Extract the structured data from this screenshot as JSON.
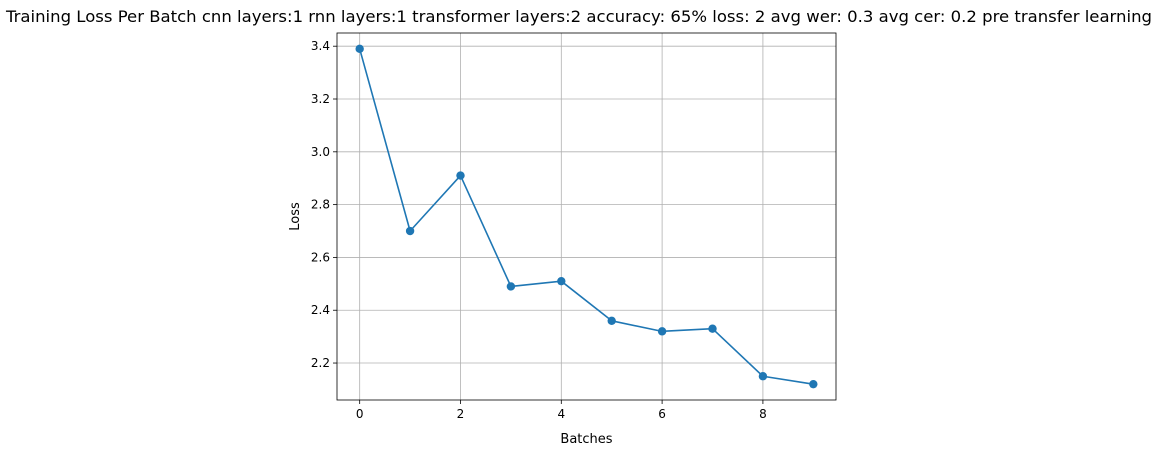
{
  "chart_data": {
    "type": "line",
    "title": "Training Loss Per Batch cnn layers:1 rnn layers:1 transformer layers:2 accuracy: 65% loss: 2 avg wer: 0.3 avg cer: 0.2 pre transfer learning",
    "xlabel": "Batches",
    "ylabel": "Loss",
    "x": [
      0,
      1,
      2,
      3,
      4,
      5,
      6,
      7,
      8,
      9
    ],
    "series": [
      {
        "values": [
          3.39,
          2.7,
          2.91,
          2.49,
          2.51,
          2.36,
          2.32,
          2.33,
          2.15,
          2.12
        ],
        "color": "#1f77b4",
        "marker": "circle"
      }
    ],
    "xlim": [
      -0.45,
      9.45
    ],
    "ylim": [
      2.06,
      3.45
    ],
    "xticks": [
      0,
      2,
      4,
      6,
      8
    ],
    "xtick_labels": [
      "0",
      "2",
      "4",
      "6",
      "8"
    ],
    "yticks": [
      2.2,
      2.4,
      2.6,
      2.8,
      3.0,
      3.2,
      3.4
    ],
    "ytick_labels": [
      "2.2",
      "2.4",
      "2.6",
      "2.8",
      "3.0",
      "3.2",
      "3.4"
    ],
    "grid": true,
    "legend": false
  }
}
